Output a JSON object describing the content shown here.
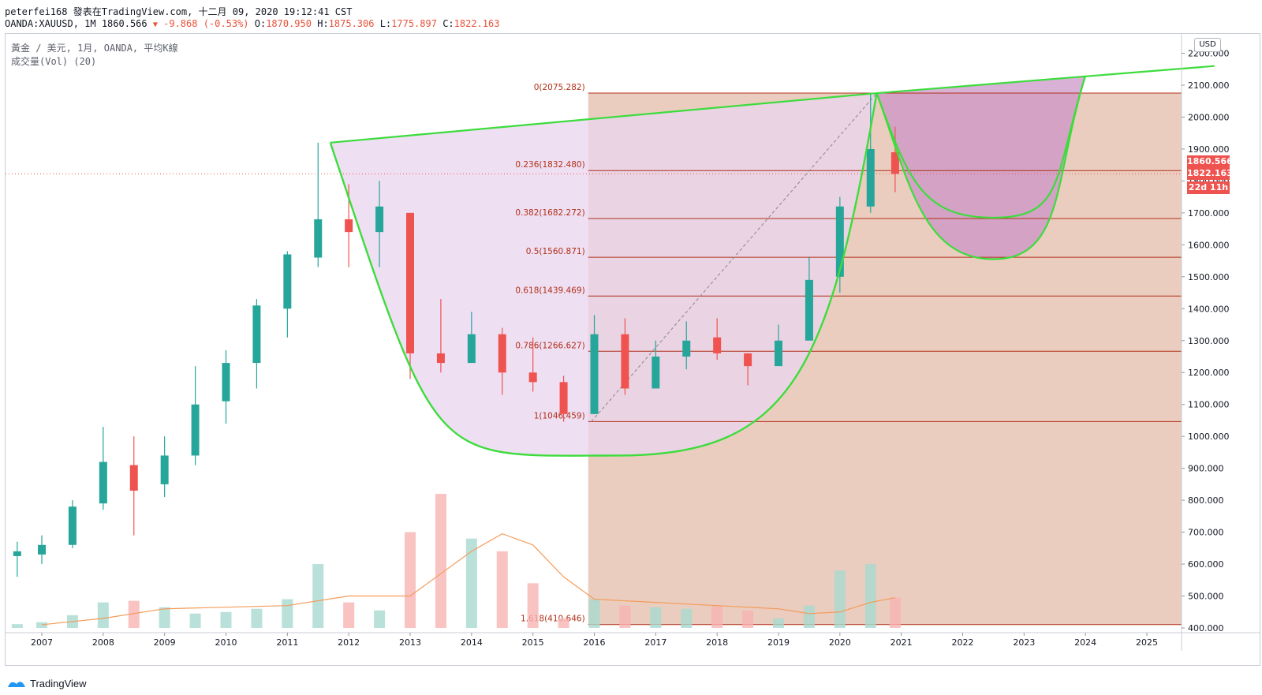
{
  "header": {
    "author": "peterfei168",
    "published": "發表在TradingView.com, 十二月 09, 2020 19:12:41 CST",
    "symbol": "OANDA:XAUUSD, 1M 1860.566",
    "change": "-9.868 (-0.53%)",
    "o_label": "O:",
    "o": "1870.950",
    "h_label": "H:",
    "h": "1875.306",
    "l_label": "L:",
    "l": "1775.897",
    "c_label": "C:",
    "c": "1822.163"
  },
  "legend": {
    "main": "黃金 / 美元, 1月, OANDA, 平均K線",
    "volume": "成交量(Vol) (20)"
  },
  "axis": {
    "currency": "USD",
    "y_ticks": [
      "400.000",
      "500.000",
      "600.000",
      "700.000",
      "800.000",
      "900.000",
      "1000.000",
      "1100.000",
      "1200.000",
      "1300.000",
      "1400.000",
      "1500.000",
      "1600.000",
      "1700.000",
      "1800.000",
      "1900.000",
      "2000.000",
      "2100.000",
      "2200.000"
    ],
    "x_ticks": [
      "2007",
      "2008",
      "2009",
      "2010",
      "2011",
      "2012",
      "2013",
      "2014",
      "2015",
      "2016",
      "2017",
      "2018",
      "2019",
      "2020",
      "2021",
      "2022",
      "2023",
      "2024",
      "2025"
    ]
  },
  "badges": {
    "last": "1860.566",
    "close": "1822.163",
    "countdown": "22d 11h"
  },
  "footer": {
    "brand": "TradingView"
  },
  "colors": {
    "up": "#26a69a",
    "down": "#ef5350",
    "fib": "#b03018",
    "curve": "#3ddc3d",
    "fib_fill": "#e8c4b4",
    "cup_fill": "#e9d4ef"
  },
  "chart_data": {
    "type": "candlestick",
    "title": "黃金 / 美元, 1月, OANDA, 平均K線",
    "x_range": [
      2006.6,
      2026.1
    ],
    "ylim": [
      400,
      2200
    ],
    "fibonacci": [
      {
        "level": "0",
        "price": 2075.282,
        "label": "0(2075.282)"
      },
      {
        "level": "0.236",
        "price": 1832.48,
        "label": "0.236(1832.480)"
      },
      {
        "level": "0.382",
        "price": 1682.272,
        "label": "0.382(1682.272)"
      },
      {
        "level": "0.5",
        "price": 1560.871,
        "label": "0.5(1560.871)"
      },
      {
        "level": "0.618",
        "price": 1439.469,
        "label": "0.618(1439.469)"
      },
      {
        "level": "0.786",
        "price": 1266.627,
        "label": "0.786(1266.627)"
      },
      {
        "level": "1",
        "price": 1046.459,
        "label": "1(1046.459)"
      },
      {
        "level": "1.618",
        "price": 410.646,
        "label": "1.618(410.646)"
      }
    ],
    "fib_range": {
      "from": 2015.9,
      "to": 2026.1
    },
    "trendline": [
      {
        "x": 2011.7,
        "y": 1920
      },
      {
        "x": 2020.6,
        "y": 2075
      },
      {
        "x": 2026.1,
        "y": 2160
      }
    ],
    "big_cup": {
      "left": {
        "x": 2011.7,
        "y": 1920
      },
      "bottom": {
        "x": 2016.4,
        "y": 940
      },
      "right": {
        "x": 2020.6,
        "y": 2075
      }
    },
    "small_cups": [
      {
        "left": {
          "x": 2020.6,
          "y": 2075
        },
        "bottom": {
          "x": 2022.5,
          "y": 1685
        },
        "right": {
          "x": 2024.0,
          "y": 2130
        }
      },
      {
        "left": {
          "x": 2020.6,
          "y": 2075
        },
        "bottom": {
          "x": 2022.5,
          "y": 1555
        },
        "right": {
          "x": 2024.0,
          "y": 2130
        }
      }
    ],
    "fib_diagonal": [
      {
        "x": 2015.95,
        "y": 1046
      },
      {
        "x": 2020.6,
        "y": 2075
      }
    ],
    "last_price": 1860.566,
    "close_price": 1822.163,
    "candles_semiannual": [
      {
        "t": 2006.6,
        "o": 625,
        "h": 670,
        "l": 560,
        "c": 640
      },
      {
        "t": 2007.0,
        "o": 630,
        "h": 690,
        "l": 600,
        "c": 660
      },
      {
        "t": 2007.5,
        "o": 660,
        "h": 800,
        "l": 650,
        "c": 780
      },
      {
        "t": 2008.0,
        "o": 790,
        "h": 1030,
        "l": 770,
        "c": 920
      },
      {
        "t": 2008.5,
        "o": 910,
        "h": 1000,
        "l": 690,
        "c": 830
      },
      {
        "t": 2009.0,
        "o": 850,
        "h": 1000,
        "l": 810,
        "c": 940
      },
      {
        "t": 2009.5,
        "o": 940,
        "h": 1220,
        "l": 910,
        "c": 1100
      },
      {
        "t": 2010.0,
        "o": 1110,
        "h": 1270,
        "l": 1040,
        "c": 1230
      },
      {
        "t": 2010.5,
        "o": 1230,
        "h": 1430,
        "l": 1150,
        "c": 1410
      },
      {
        "t": 2011.0,
        "o": 1400,
        "h": 1580,
        "l": 1310,
        "c": 1570
      },
      {
        "t": 2011.5,
        "o": 1560,
        "h": 1920,
        "l": 1530,
        "c": 1680
      },
      {
        "t": 2012.0,
        "o": 1680,
        "h": 1790,
        "l": 1530,
        "c": 1640
      },
      {
        "t": 2012.5,
        "o": 1640,
        "h": 1800,
        "l": 1530,
        "c": 1720
      },
      {
        "t": 2013.0,
        "o": 1700,
        "h": 1700,
        "l": 1180,
        "c": 1260
      },
      {
        "t": 2013.5,
        "o": 1260,
        "h": 1430,
        "l": 1200,
        "c": 1230
      },
      {
        "t": 2014.0,
        "o": 1230,
        "h": 1390,
        "l": 1230,
        "c": 1320
      },
      {
        "t": 2014.5,
        "o": 1320,
        "h": 1340,
        "l": 1130,
        "c": 1200
      },
      {
        "t": 2015.0,
        "o": 1200,
        "h": 1310,
        "l": 1140,
        "c": 1170
      },
      {
        "t": 2015.5,
        "o": 1170,
        "h": 1190,
        "l": 1046,
        "c": 1070
      },
      {
        "t": 2016.0,
        "o": 1070,
        "h": 1380,
        "l": 1070,
        "c": 1320
      },
      {
        "t": 2016.5,
        "o": 1320,
        "h": 1370,
        "l": 1130,
        "c": 1150
      },
      {
        "t": 2017.0,
        "o": 1150,
        "h": 1300,
        "l": 1150,
        "c": 1250
      },
      {
        "t": 2017.5,
        "o": 1250,
        "h": 1360,
        "l": 1210,
        "c": 1300
      },
      {
        "t": 2018.0,
        "o": 1310,
        "h": 1370,
        "l": 1240,
        "c": 1260
      },
      {
        "t": 2018.5,
        "o": 1260,
        "h": 1260,
        "l": 1160,
        "c": 1220
      },
      {
        "t": 2019.0,
        "o": 1220,
        "h": 1350,
        "l": 1260,
        "c": 1300
      },
      {
        "t": 2019.5,
        "o": 1300,
        "h": 1560,
        "l": 1400,
        "c": 1490
      },
      {
        "t": 2020.0,
        "o": 1500,
        "h": 1750,
        "l": 1450,
        "c": 1720
      },
      {
        "t": 2020.5,
        "o": 1720,
        "h": 2075,
        "l": 1700,
        "c": 1900
      },
      {
        "t": 2020.9,
        "o": 1890,
        "h": 1970,
        "l": 1765,
        "c": 1822
      }
    ],
    "volume_semiannual": [
      {
        "t": 2006.6,
        "v": 412
      },
      {
        "t": 2007.0,
        "v": 418
      },
      {
        "t": 2007.5,
        "v": 440
      },
      {
        "t": 2008.0,
        "v": 480
      },
      {
        "t": 2008.5,
        "v": 485
      },
      {
        "t": 2009.0,
        "v": 465
      },
      {
        "t": 2009.5,
        "v": 445
      },
      {
        "t": 2010.0,
        "v": 450
      },
      {
        "t": 2010.5,
        "v": 460
      },
      {
        "t": 2011.0,
        "v": 490
      },
      {
        "t": 2011.5,
        "v": 600
      },
      {
        "t": 2012.0,
        "v": 480
      },
      {
        "t": 2012.5,
        "v": 455
      },
      {
        "t": 2013.0,
        "v": 700
      },
      {
        "t": 2013.5,
        "v": 820
      },
      {
        "t": 2014.0,
        "v": 680
      },
      {
        "t": 2014.5,
        "v": 640
      },
      {
        "t": 2015.0,
        "v": 540
      },
      {
        "t": 2015.5,
        "v": 430
      },
      {
        "t": 2016.0,
        "v": 490
      },
      {
        "t": 2016.5,
        "v": 470
      },
      {
        "t": 2017.0,
        "v": 465
      },
      {
        "t": 2017.5,
        "v": 460
      },
      {
        "t": 2018.0,
        "v": 470
      },
      {
        "t": 2018.5,
        "v": 455
      },
      {
        "t": 2019.0,
        "v": 430
      },
      {
        "t": 2019.5,
        "v": 470
      },
      {
        "t": 2020.0,
        "v": 580
      },
      {
        "t": 2020.5,
        "v": 600
      },
      {
        "t": 2020.9,
        "v": 495
      }
    ],
    "volume_ma": [
      {
        "t": 2007.0,
        "v": 410
      },
      {
        "t": 2008.0,
        "v": 430
      },
      {
        "t": 2009.0,
        "v": 460
      },
      {
        "t": 2010.0,
        "v": 465
      },
      {
        "t": 2011.0,
        "v": 470
      },
      {
        "t": 2012.0,
        "v": 500
      },
      {
        "t": 2013.0,
        "v": 500
      },
      {
        "t": 2013.5,
        "v": 570
      },
      {
        "t": 2014.0,
        "v": 640
      },
      {
        "t": 2014.5,
        "v": 695
      },
      {
        "t": 2015.0,
        "v": 660
      },
      {
        "t": 2015.5,
        "v": 560
      },
      {
        "t": 2016.0,
        "v": 490
      },
      {
        "t": 2017.0,
        "v": 480
      },
      {
        "t": 2018.0,
        "v": 470
      },
      {
        "t": 2019.0,
        "v": 460
      },
      {
        "t": 2019.5,
        "v": 445
      },
      {
        "t": 2020.0,
        "v": 450
      },
      {
        "t": 2020.5,
        "v": 480
      },
      {
        "t": 2020.9,
        "v": 495
      }
    ]
  }
}
